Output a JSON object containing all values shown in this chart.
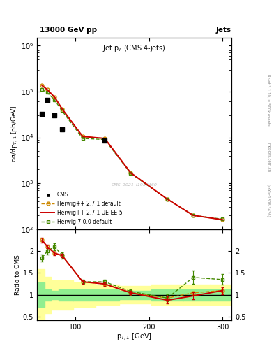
{
  "title_top": "13000 GeV pp",
  "title_right": "Jets",
  "plot_title": "Jet p$_T$ (CMS 4-jets)",
  "xlabel": "p$_{T,1}$ [GeV]",
  "ylabel_main": "dσ/dp$_{T,1}$ [pb/GeV]",
  "ylabel_ratio": "Ratio to CMS",
  "right_label": "Rivet 3.1.10, ≥ 500k events",
  "arxiv_label": "[arXiv:1306.3436]",
  "mcplots_label": "mcplots.cern.ch",
  "cms_label": "CMS_2021_I1932460",
  "cms_x": [
    55,
    62,
    72,
    82,
    140
  ],
  "cms_y": [
    32000.0,
    65000.0,
    30000.0,
    15000.0,
    8500
  ],
  "herwig_x": [
    55,
    62,
    72,
    82,
    110,
    140,
    175,
    225,
    260,
    300
  ],
  "herwig_default_y": [
    135000.0,
    110000.0,
    75000.0,
    42000.0,
    10500.0,
    9500,
    1700,
    450,
    200,
    160
  ],
  "herwig_ueee5_y": [
    135000.0,
    110000.0,
    75000.0,
    42000.0,
    10500.0,
    9500,
    1700,
    450,
    200,
    160
  ],
  "herwig700_y": [
    110000.0,
    95000.0,
    65000.0,
    38000.0,
    9500,
    9000,
    1650,
    450,
    200,
    165
  ],
  "ratio_x": [
    55,
    62,
    72,
    82,
    110,
    140,
    175,
    225,
    260,
    300
  ],
  "ratio_herwig_default": [
    2.25,
    2.1,
    1.95,
    1.9,
    1.3,
    1.25,
    1.05,
    0.93,
    1.05,
    1.1
  ],
  "ratio_herwig_ueee5": [
    2.25,
    2.1,
    1.95,
    1.9,
    1.3,
    1.25,
    1.05,
    0.88,
    0.98,
    1.1
  ],
  "ratio_herwig700": [
    1.85,
    2.0,
    2.1,
    1.9,
    1.3,
    1.3,
    1.08,
    0.93,
    1.4,
    1.35
  ],
  "ratio_ueee5_err": [
    0.05,
    0.04,
    0.04,
    0.04,
    0.04,
    0.04,
    0.04,
    0.08,
    0.08,
    0.08
  ],
  "ratio_700_err": [
    0.08,
    0.08,
    0.08,
    0.07,
    0.05,
    0.05,
    0.05,
    0.08,
    0.15,
    0.12
  ],
  "band_x_edges": [
    48,
    58,
    67,
    77,
    97,
    127,
    160,
    203,
    247,
    283,
    310
  ],
  "band_green_low": [
    0.72,
    0.87,
    0.9,
    0.87,
    0.87,
    0.87,
    0.9,
    0.87,
    0.87,
    0.87
  ],
  "band_green_high": [
    1.28,
    1.13,
    1.1,
    1.13,
    1.13,
    1.13,
    1.1,
    1.13,
    1.13,
    1.13
  ],
  "band_yellow_low": [
    0.42,
    0.58,
    0.67,
    0.67,
    0.72,
    0.77,
    0.8,
    0.77,
    0.77,
    0.77
  ],
  "band_yellow_high": [
    1.58,
    1.42,
    1.33,
    1.33,
    1.28,
    1.23,
    1.2,
    1.23,
    1.23,
    1.23
  ],
  "color_default": "#cc8800",
  "color_ueee5": "#cc0000",
  "color_700": "#448800",
  "color_cms": "#000000",
  "color_green_band": "#90ee90",
  "color_yellow_band": "#ffff99",
  "xlim": [
    48,
    312
  ],
  "ylim_main": [
    100.0,
    1500000.0
  ],
  "ylim_ratio": [
    0.42,
    2.5
  ]
}
